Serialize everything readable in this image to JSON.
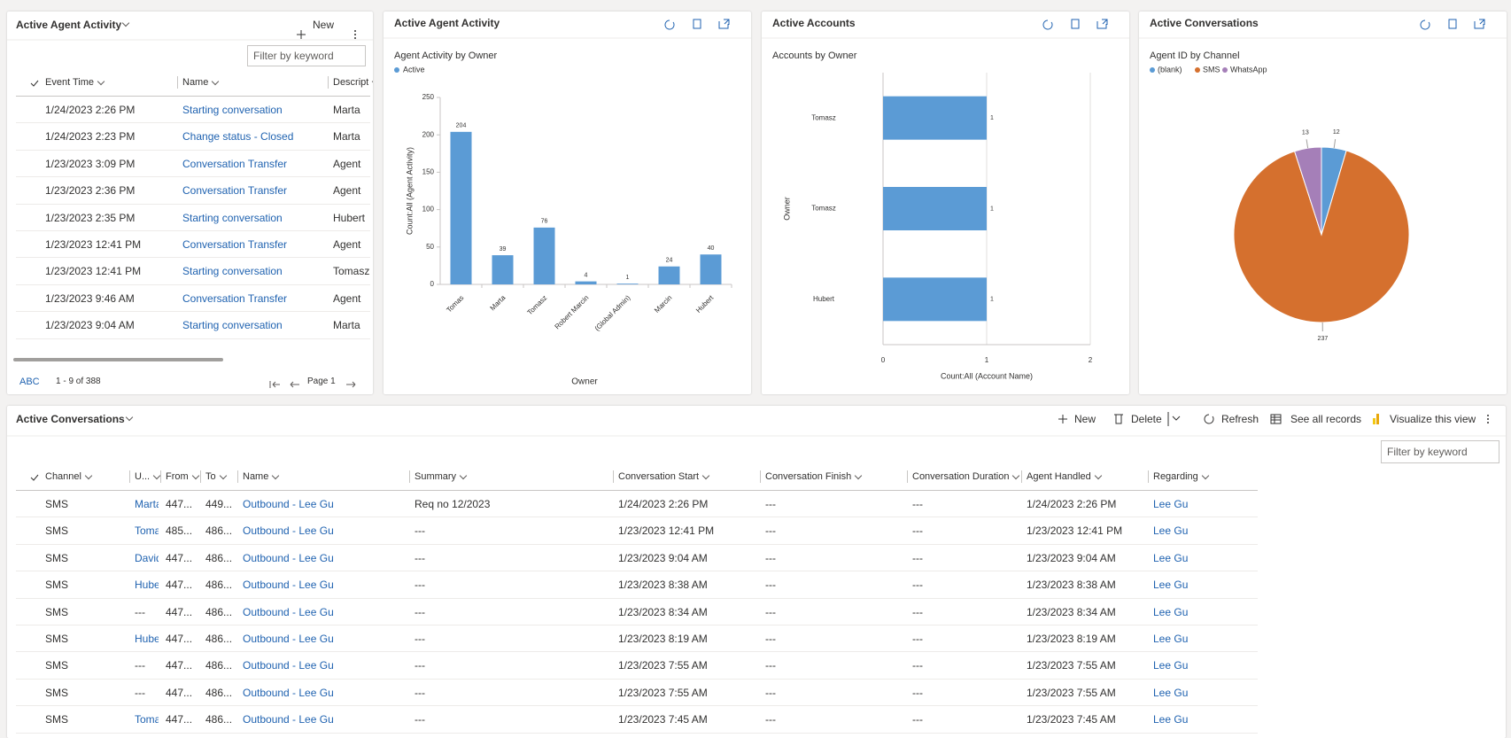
{
  "agent_activity_grid": {
    "title": "Active Agent Activity",
    "new": "New",
    "filter_placeholder": "Filter by keyword",
    "columns": [
      "Event Time",
      "Name",
      "Descript"
    ],
    "rows": [
      [
        "1/24/2023 2:26 PM",
        "Starting conversation",
        "Marta"
      ],
      [
        "1/24/2023 2:23 PM",
        "Change status - Closed",
        "Marta"
      ],
      [
        "1/23/2023 3:09 PM",
        "Conversation Transfer",
        "Agent"
      ],
      [
        "1/23/2023 2:36 PM",
        "Conversation Transfer",
        "Agent"
      ],
      [
        "1/23/2023 2:35 PM",
        "Starting conversation",
        "Hubert"
      ],
      [
        "1/23/2023 12:41 PM",
        "Conversation Transfer",
        "Agent"
      ],
      [
        "1/23/2023 12:41 PM",
        "Starting conversation",
        "Tomasz"
      ],
      [
        "1/23/2023 9:46 AM",
        "Conversation Transfer",
        "Agent"
      ],
      [
        "1/23/2023 9:04 AM",
        "Starting conversation",
        "Marta"
      ]
    ],
    "footer": {
      "abc": "ABC",
      "count": "1 - 9 of 388",
      "page": "Page 1"
    }
  },
  "panels": [
    "Active Agent Activity",
    "Active Accounts",
    "Active Conversations"
  ],
  "chart_data": [
    {
      "type": "bar",
      "title": "Agent Activity by Owner",
      "categories": [
        "Tomas",
        "Marta",
        "Tomasz",
        "Robert Marcin",
        "(Global Admin)",
        "Marcin",
        "Hubert"
      ],
      "series": [
        {
          "name": "Active",
          "color": "#5b9bd5",
          "values": [
            204,
            39,
            76,
            4,
            1,
            24,
            40
          ]
        }
      ],
      "ylim": [
        0,
        250
      ],
      "yticks": [
        0,
        50,
        100,
        150,
        200,
        250
      ],
      "y_label": "Count:All (Agent Activity)",
      "x_label": "Owner"
    },
    {
      "type": "bar",
      "horizontal": true,
      "title": "Accounts by Owner",
      "categories": [
        "Tomasz",
        "Tomasz",
        "Hubert"
      ],
      "values": [
        1,
        1,
        1
      ],
      "color": "#5b9bd5",
      "xlim": [
        0,
        2
      ],
      "xticks": [
        0,
        1,
        2
      ],
      "grid": true,
      "x_label": "Count:All (Account Name)",
      "y_label": "Owner"
    },
    {
      "type": "pie",
      "title": "Agent ID by Channel",
      "categories": [
        "(blank)",
        "SMS",
        "WhatsApp"
      ],
      "values": [
        12,
        237,
        13
      ],
      "colors": [
        "#5b9bd5",
        "#d5702e",
        "#a57fb8"
      ]
    }
  ],
  "conversations_grid": {
    "title": "Active Conversations",
    "toolbar": [
      "New",
      "Delete",
      "Refresh",
      "See all records",
      "Visualize this view"
    ],
    "filter_placeholder": "Filter by keyword",
    "columns": [
      "Channel",
      "U...",
      "From",
      "To",
      "Name",
      "Summary",
      "Conversation Start",
      "Conversation Finish",
      "Conversation Duration",
      "Agent Handled",
      "Regarding"
    ],
    "rows": [
      [
        "SMS",
        "Marta",
        "447...",
        "449...",
        "Outbound - Lee Gu",
        "Req no 12/2023",
        "1/24/2023 2:26 PM",
        "---",
        "---",
        "1/24/2023 2:26 PM",
        "Lee Gu"
      ],
      [
        "SMS",
        "Tomas",
        "485...",
        "486...",
        "Outbound - Lee Gu",
        "---",
        "1/23/2023 12:41 PM",
        "---",
        "---",
        "1/23/2023 12:41 PM",
        "Lee Gu"
      ],
      [
        "SMS",
        "David",
        "447...",
        "486...",
        "Outbound - Lee Gu",
        "---",
        "1/23/2023 9:04 AM",
        "---",
        "---",
        "1/23/2023 9:04 AM",
        "Lee Gu"
      ],
      [
        "SMS",
        "Huber",
        "447...",
        "486...",
        "Outbound - Lee Gu",
        "---",
        "1/23/2023 8:38 AM",
        "---",
        "---",
        "1/23/2023 8:38 AM",
        "Lee Gu"
      ],
      [
        "SMS",
        "---",
        "447...",
        "486...",
        "Outbound - Lee Gu",
        "---",
        "1/23/2023 8:34 AM",
        "---",
        "---",
        "1/23/2023 8:34 AM",
        "Lee Gu"
      ],
      [
        "SMS",
        "Huber",
        "447...",
        "486...",
        "Outbound - Lee Gu",
        "---",
        "1/23/2023 8:19 AM",
        "---",
        "---",
        "1/23/2023 8:19 AM",
        "Lee Gu"
      ],
      [
        "SMS",
        "---",
        "447...",
        "486...",
        "Outbound - Lee Gu",
        "---",
        "1/23/2023 7:55 AM",
        "---",
        "---",
        "1/23/2023 7:55 AM",
        "Lee Gu"
      ],
      [
        "SMS",
        "---",
        "447...",
        "486...",
        "Outbound - Lee Gu",
        "---",
        "1/23/2023 7:55 AM",
        "---",
        "---",
        "1/23/2023 7:55 AM",
        "Lee Gu"
      ],
      [
        "SMS",
        "Tomas",
        "447...",
        "486...",
        "Outbound - Lee Gu",
        "---",
        "1/23/2023 7:45 AM",
        "---",
        "---",
        "1/23/2023 7:45 AM",
        "Lee Gu"
      ]
    ]
  }
}
